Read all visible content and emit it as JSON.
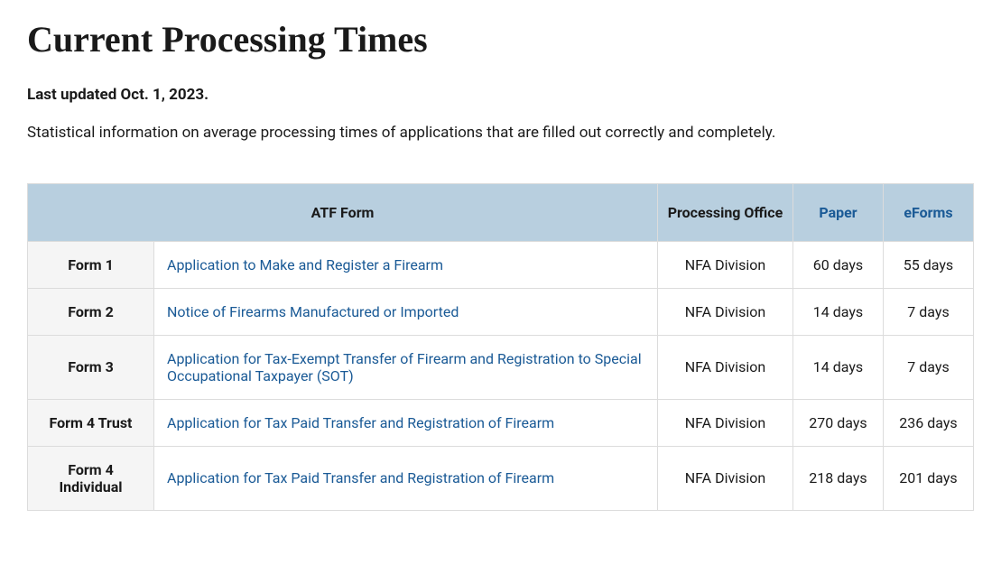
{
  "title": "Current Processing Times",
  "last_updated": "Last updated Oct. 1, 2023.",
  "description": "Statistical information on average processing times of applications that are filled out correctly and completely.",
  "table": {
    "columns": {
      "form": "ATF Form",
      "office": "Processing Office",
      "paper": "Paper",
      "eforms": "eForms"
    },
    "header_link_color": "#1a5a96",
    "header_bg_color": "#b8cfdf",
    "row_alt_bg": "#f5f5f5",
    "border_color": "#dcdcdc",
    "rows": [
      {
        "form": "Form 1",
        "desc": "Application to Make and Register a Firearm",
        "office": "NFA Division",
        "paper": "60 days",
        "eforms": "55 days"
      },
      {
        "form": "Form 2",
        "desc": "Notice of Firearms Manufactured or Imported",
        "office": "NFA Division",
        "paper": "14 days",
        "eforms": "7 days"
      },
      {
        "form": "Form 3",
        "desc": "Application for Tax-Exempt Transfer of Firearm and Registration to Special Occupational Taxpayer (SOT)",
        "office": "NFA Division",
        "paper": "14 days",
        "eforms": "7 days"
      },
      {
        "form": "Form 4 Trust",
        "desc": "Application for Tax Paid Transfer and Registration of Firearm",
        "office": "NFA Division",
        "paper": "270 days",
        "eforms": "236 days"
      },
      {
        "form": "Form 4 Individual",
        "desc": "Application for Tax Paid Transfer and Registration of Firearm",
        "office": "NFA Division",
        "paper": "218 days",
        "eforms": "201 days"
      }
    ]
  }
}
